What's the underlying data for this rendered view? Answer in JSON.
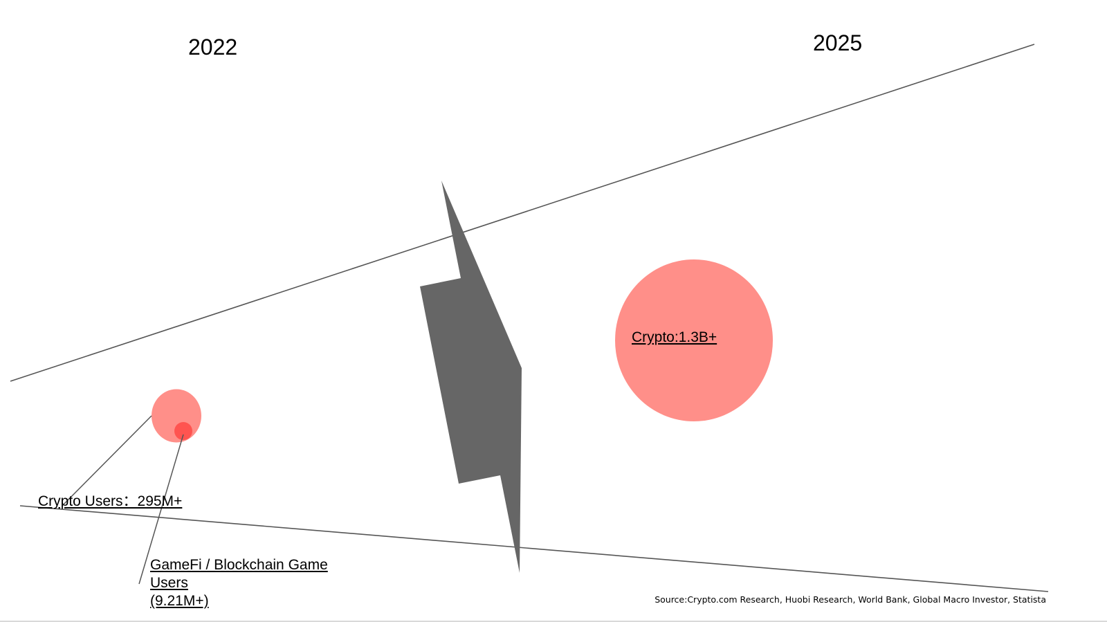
{
  "timeline": {
    "start_year": "2022",
    "end_year": "2025"
  },
  "labels": {
    "crypto_users_2022": "Crypto Users：295M+",
    "gamefi_line1": "GameFi / Blockchain Game",
    "gamefi_line2": "Users",
    "gamefi_line3": "(9.21M+)",
    "crypto_2025": "Crypto:1.3B+"
  },
  "source": "Source:Crypto.com Research, Huobi Research, World Bank, Global Macro Investor, Statista",
  "colors": {
    "bubble": "#ff8f89",
    "gamefi_dot": "#ff5450",
    "arrow": "#666666",
    "lines": "#555555"
  },
  "icons": {
    "transition": "lightning-bolt-icon"
  }
}
